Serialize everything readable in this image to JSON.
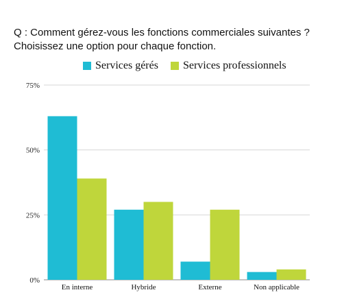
{
  "title_lines": [
    "Q : Comment gérez-vous les fonctions commerciales suivantes ?",
    "Choisissez une option pour chaque fonction."
  ],
  "legend": [
    {
      "label": "Services gérés",
      "color": "#1FBCD4"
    },
    {
      "label": "Services professionnels",
      "color": "#BFD63B"
    }
  ],
  "chart_data": {
    "type": "bar",
    "title": "Q : Comment gérez-vous les fonctions commerciales suivantes ? Choisissez une option pour chaque fonction.",
    "categories": [
      "En interne",
      "Hybride",
      "Externe",
      "Non applicable"
    ],
    "series": [
      {
        "name": "Services gérés",
        "color": "#1FBCD4",
        "values": [
          63,
          27,
          7,
          3
        ]
      },
      {
        "name": "Services professionnels",
        "color": "#BFD63B",
        "values": [
          39,
          30,
          27,
          4
        ]
      }
    ],
    "yticks": [
      0,
      25,
      50,
      75
    ],
    "ytick_labels": [
      "0%",
      "25%",
      "50%",
      "75%"
    ],
    "ylim": [
      0,
      75
    ],
    "grid": true,
    "legend_position": "top"
  }
}
